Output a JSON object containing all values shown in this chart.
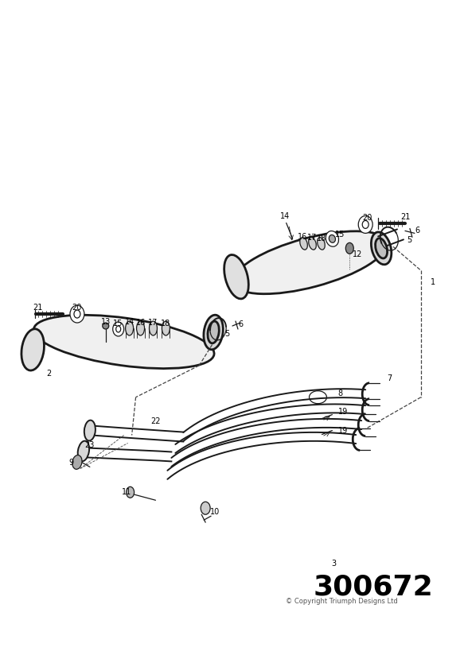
{
  "background_color": "#ffffff",
  "part_number": "300672",
  "copyright": "© Copyright Triumph Designs Ltd",
  "figsize": [
    5.83,
    8.24
  ],
  "dpi": 100
}
